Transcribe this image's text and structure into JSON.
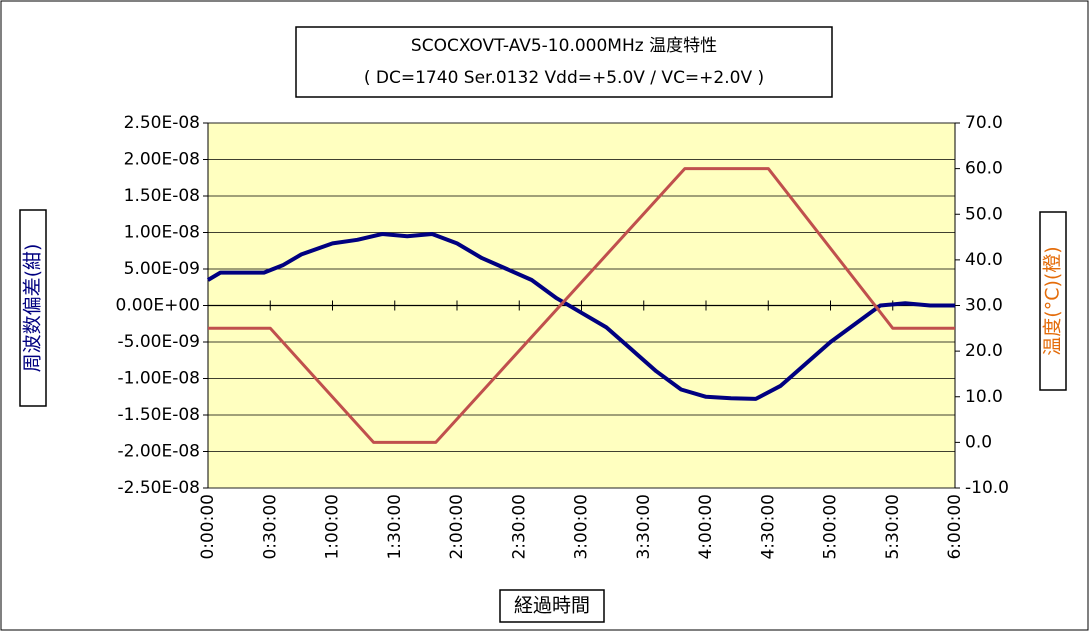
{
  "chart_data": {
    "type": "line",
    "title": "SCOCXOVT-AV5-10.000MHz  温度特性",
    "subtitle": "( DC=1740  Ser.0132  Vdd=+5.0V / VC=+2.0V )",
    "y_label": "周波数偏差(紺)",
    "y2_label": "温度(°C)(橙)",
    "x_label": "経過時間",
    "xlim": [
      0,
      6
    ],
    "xticks": [
      {
        "value": 0,
        "label": "0:00:00"
      },
      {
        "value": 0.5,
        "label": "0:30:00"
      },
      {
        "value": 1,
        "label": "1:00:00"
      },
      {
        "value": 1.5,
        "label": "1:30:00"
      },
      {
        "value": 2,
        "label": "2:00:00"
      },
      {
        "value": 2.5,
        "label": "2:30:00"
      },
      {
        "value": 3,
        "label": "3:00:00"
      },
      {
        "value": 3.5,
        "label": "3:30:00"
      },
      {
        "value": 4,
        "label": "4:00:00"
      },
      {
        "value": 4.5,
        "label": "4:30:00"
      },
      {
        "value": 5,
        "label": "5:00:00"
      },
      {
        "value": 5.5,
        "label": "5:30:00"
      },
      {
        "value": 6,
        "label": "6:00:00"
      }
    ],
    "ylim": [
      -2.5e-08,
      2.5e-08
    ],
    "yticks": [
      {
        "value": 2.5e-08,
        "label": "2.50E-08"
      },
      {
        "value": 2e-08,
        "label": "2.00E-08"
      },
      {
        "value": 1.5e-08,
        "label": "1.50E-08"
      },
      {
        "value": 1e-08,
        "label": "1.00E-08"
      },
      {
        "value": 5e-09,
        "label": "5.00E-09"
      },
      {
        "value": 0,
        "label": "0.00E+00"
      },
      {
        "value": -5e-09,
        "label": "-5.00E-09"
      },
      {
        "value": -1e-08,
        "label": "-1.00E-08"
      },
      {
        "value": -1.5e-08,
        "label": "-1.50E-08"
      },
      {
        "value": -2e-08,
        "label": "-2.00E-08"
      },
      {
        "value": -2.5e-08,
        "label": "-2.50E-08"
      }
    ],
    "y2lim": [
      -10,
      70
    ],
    "y2ticks": [
      {
        "value": 70,
        "label": "70.0"
      },
      {
        "value": 60,
        "label": "60.0"
      },
      {
        "value": 50,
        "label": "50.0"
      },
      {
        "value": 40,
        "label": "40.0"
      },
      {
        "value": 30,
        "label": "30.0"
      },
      {
        "value": 20,
        "label": "20.0"
      },
      {
        "value": 10,
        "label": "10.0"
      },
      {
        "value": 0,
        "label": "0.0"
      },
      {
        "value": -10,
        "label": "-10.0"
      }
    ],
    "grid": true,
    "series": [
      {
        "color": "#000080",
        "x": [
          0,
          0.1,
          0.25,
          0.45,
          0.6,
          0.75,
          1.0,
          1.2,
          1.4,
          1.6,
          1.8,
          2.0,
          2.2,
          2.4,
          2.6,
          2.8,
          3.0,
          3.2,
          3.4,
          3.6,
          3.8,
          4.0,
          4.2,
          4.4,
          4.6,
          4.8,
          5.0,
          5.2,
          5.4,
          5.6,
          5.8,
          6.0
        ],
        "values": [
          3.5e-09,
          4.5e-09,
          4.5e-09,
          4.5e-09,
          5.5e-09,
          7e-09,
          8.5e-09,
          9e-09,
          9.8e-09,
          9.5e-09,
          9.8e-09,
          8.5e-09,
          6.5e-09,
          5e-09,
          3.5e-09,
          1e-09,
          -1e-09,
          -3e-09,
          -6e-09,
          -9e-09,
          -1.15e-08,
          -1.25e-08,
          -1.27e-08,
          -1.28e-08,
          -1.1e-08,
          -8e-09,
          -5e-09,
          -2.5e-09,
          0,
          3e-10,
          0,
          0
        ]
      },
      {
        "color": "#c0504d",
        "axis": "y2",
        "x": [
          0,
          0.5,
          1.33,
          1.83,
          3.83,
          4.5,
          5.5,
          6
        ],
        "values": [
          25,
          25,
          0,
          0,
          60,
          60,
          25,
          25
        ]
      }
    ]
  }
}
